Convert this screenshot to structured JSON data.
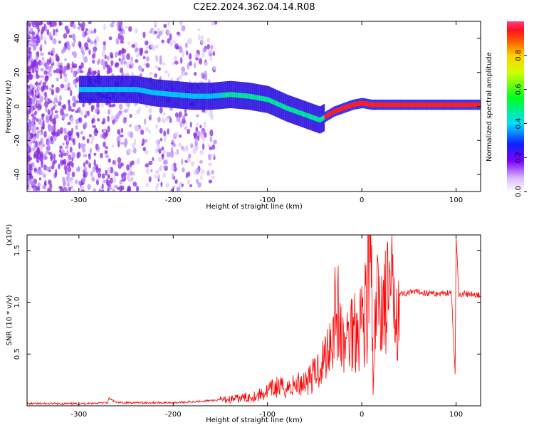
{
  "title": "C2E2.2024.362.04.14.R08",
  "chart_data": [
    {
      "type": "heatmap",
      "name": "spectrogram",
      "xlabel": "Height of straight line (km)",
      "ylabel": "Frequency (Hz)",
      "xlim": [
        -355,
        126
      ],
      "ylim": [
        -50,
        50
      ],
      "x_ticks": [
        -300,
        -200,
        -100,
        0,
        100
      ],
      "y_ticks": [
        -40,
        -20,
        0,
        20,
        40
      ],
      "colorbar": {
        "label": "Normalized spectral amplitude",
        "range": [
          0,
          1
        ],
        "ticks": [
          0.0,
          0.2,
          0.4,
          0.6,
          0.8
        ]
      },
      "ridge": {
        "x": [
          -300,
          -280,
          -260,
          -240,
          -220,
          -200,
          -180,
          -160,
          -140,
          -120,
          -100,
          -80,
          -60,
          -45,
          -30,
          -10,
          0,
          10,
          40,
          80,
          95,
          126
        ],
        "freq": [
          10,
          10,
          10,
          10,
          8,
          7,
          6,
          6,
          7,
          6,
          4,
          -1,
          -5,
          -8,
          -3,
          1,
          2,
          1,
          1,
          1,
          1,
          1
        ]
      },
      "grid": false
    },
    {
      "type": "line",
      "name": "snr",
      "xlabel": "Height of straight line (km)",
      "ylabel": "SNR (10 * v/v)",
      "y_multiplier": "(x10⁴)",
      "xlim": [
        -355,
        126
      ],
      "ylim": [
        0,
        1.65
      ],
      "x_ticks": [
        -300,
        -200,
        -100,
        0,
        100
      ],
      "y_ticks": [
        0.5,
        1.0,
        1.5
      ],
      "y_tick_labels": [
        "0.5",
        "1.0",
        "1.5"
      ],
      "series": [
        {
          "color": "#ff0000",
          "x": [
            -355,
            -300,
            -270,
            -268,
            -260,
            -200,
            -160,
            -130,
            -110,
            -100,
            -90,
            -80,
            -70,
            -60,
            -50,
            -45,
            -40,
            -35,
            -30,
            -28,
            -20,
            -10,
            0,
            5,
            10,
            12,
            15,
            20,
            30,
            40,
            60,
            80,
            95,
            99,
            100,
            103,
            110,
            126
          ],
          "y": [
            0.02,
            0.02,
            0.03,
            0.07,
            0.03,
            0.03,
            0.05,
            0.07,
            0.1,
            0.14,
            0.18,
            0.17,
            0.2,
            0.24,
            0.3,
            0.38,
            0.45,
            0.6,
            0.75,
            1.05,
            0.55,
            0.75,
            0.85,
            0.95,
            1.5,
            0.1,
            0.95,
            1.0,
            1.05,
            1.08,
            1.1,
            1.08,
            1.1,
            0.3,
            1.62,
            1.08,
            1.08,
            1.07
          ]
        }
      ],
      "grid": false
    }
  ]
}
